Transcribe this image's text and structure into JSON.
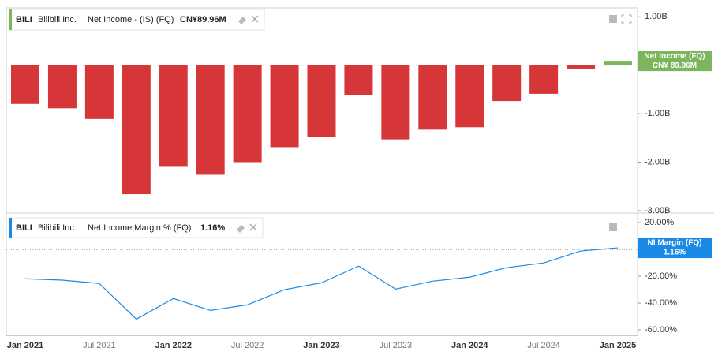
{
  "chart_data": [
    {
      "type": "bar",
      "ticker": "BILI",
      "company": "Bilibili Inc.",
      "metric": "Net Income - (IS) (FQ)",
      "current": "CN¥89.96M",
      "badge_name": "Net Income (FQ)",
      "badge_value": "CN¥ 89.96M",
      "categories": [
        "Jan 2021",
        null,
        "Jul 2021",
        null,
        "Jan 2022",
        null,
        "Jul 2022",
        null,
        "Jan 2023",
        null,
        "Jul 2023",
        null,
        "Jan 2024",
        null,
        "Jul 2024",
        null,
        "Jan 2025"
      ],
      "values": [
        -800000000,
        -890000000,
        -1110000000,
        -2660000000,
        -2080000000,
        -2260000000,
        -2000000000,
        -1690000000,
        -1480000000,
        -610000000,
        -1530000000,
        -1330000000,
        -1280000000,
        -740000000,
        -590000000,
        -70000000,
        89960000
      ],
      "color": "#d63638",
      "positive_color": "#7cb65c",
      "ylim": [
        -3050000000,
        1150000000
      ],
      "yticks": [
        {
          "value": 1000000000,
          "label": "1.00B"
        },
        {
          "value": -1000000000,
          "label": "-1.00B"
        },
        {
          "value": -2000000000,
          "label": "-2.00B"
        },
        {
          "value": -3000000000,
          "label": "-3.00B"
        }
      ]
    },
    {
      "type": "line",
      "ticker": "BILI",
      "company": "Bilibili Inc.",
      "metric": "Net Income Margin % (FQ)",
      "current": "1.16%",
      "badge_name": "NI Margin (FQ)",
      "badge_value": "1.16%",
      "values": [
        -21.9,
        -22.9,
        -25.4,
        -52,
        -36.6,
        -45.5,
        -41.3,
        -30,
        -24.9,
        -12.4,
        -29.6,
        -23.7,
        -20.7,
        -13.6,
        -10.1,
        -1.2,
        1.16
      ],
      "color": "#1a8ae6",
      "ylim": [
        -63.5,
        25.9
      ],
      "yticks": [
        {
          "value": 20,
          "label": "20.00%"
        },
        {
          "value": -20,
          "label": "-20.00%"
        },
        {
          "value": -40,
          "label": "-40.00%"
        },
        {
          "value": -60,
          "label": "-60.00%"
        }
      ]
    }
  ]
}
